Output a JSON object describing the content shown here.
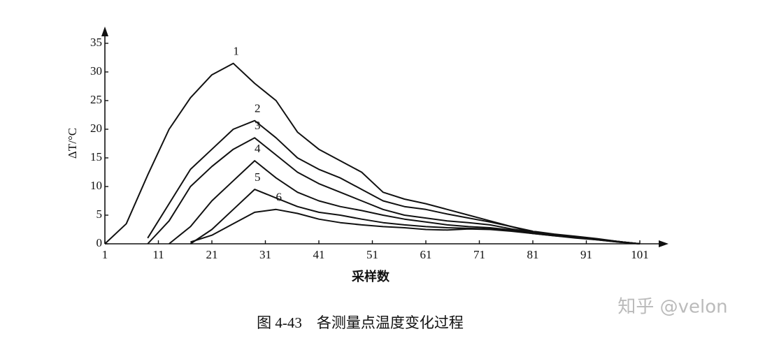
{
  "chart_data": {
    "type": "line",
    "y_label": "ΔT/°C",
    "x_label": "采样数",
    "caption": "图 4-43　各测量点温度变化过程",
    "watermark": "知乎 @velon",
    "x": [
      1,
      5,
      9,
      13,
      17,
      21,
      25,
      29,
      33,
      37,
      41,
      45,
      49,
      53,
      57,
      61,
      65,
      69,
      73,
      77,
      81,
      85,
      89,
      93,
      97,
      101
    ],
    "xlim": [
      1,
      101
    ],
    "xticks": [
      1,
      11,
      21,
      31,
      41,
      51,
      61,
      71,
      81,
      91,
      101
    ],
    "ylim": [
      0,
      35
    ],
    "yticks": [
      0,
      5,
      10,
      15,
      20,
      25,
      30,
      35
    ],
    "grid": false,
    "series": [
      {
        "name": "1",
        "color": "#111111",
        "values": [
          0,
          3.5,
          12,
          20,
          25.5,
          29.5,
          31.5,
          28,
          25,
          19.5,
          16.5,
          14.5,
          12.5,
          9,
          7.8,
          7,
          6,
          5,
          4,
          3,
          2,
          1.5,
          1.1,
          0.8,
          0.4,
          0
        ]
      },
      {
        "name": "2",
        "color": "#111111",
        "values": [
          null,
          null,
          1,
          7,
          13,
          16.5,
          20,
          21.5,
          18.5,
          15,
          13,
          11.5,
          9.5,
          7.5,
          6.5,
          6,
          5.2,
          4.5,
          3.8,
          3,
          2.2,
          1.7,
          1.3,
          0.9,
          0.4,
          0
        ]
      },
      {
        "name": "3",
        "color": "#111111",
        "values": [
          null,
          null,
          0,
          4,
          10,
          13.5,
          16.5,
          18.5,
          15.5,
          12.5,
          10.5,
          9,
          7.5,
          6,
          5,
          4.5,
          4,
          3.7,
          3.3,
          2.6,
          2,
          1.5,
          1.2,
          0.8,
          0.4,
          0
        ]
      },
      {
        "name": "4",
        "color": "#111111",
        "values": [
          null,
          null,
          null,
          0,
          3,
          7.5,
          11,
          14.5,
          11.5,
          9,
          7.5,
          6.5,
          5.8,
          5,
          4.3,
          3.8,
          3.3,
          3,
          2.8,
          2.4,
          1.9,
          1.5,
          1.1,
          0.8,
          0.4,
          0
        ]
      },
      {
        "name": "5",
        "color": "#111111",
        "values": [
          null,
          null,
          null,
          null,
          0,
          2.5,
          6,
          9.5,
          8,
          6.5,
          5.5,
          5,
          4.3,
          3.7,
          3.3,
          3,
          2.8,
          2.7,
          2.6,
          2.3,
          1.8,
          1.4,
          1.1,
          0.7,
          0.3,
          0
        ]
      },
      {
        "name": "6",
        "color": "#111111",
        "values": [
          null,
          null,
          null,
          null,
          0.3,
          1.5,
          3.5,
          5.5,
          6,
          5.3,
          4.3,
          3.7,
          3.3,
          3,
          2.8,
          2.5,
          2.4,
          2.6,
          2.5,
          2.2,
          1.8,
          1.4,
          1,
          0.7,
          0.3,
          0
        ]
      }
    ]
  }
}
